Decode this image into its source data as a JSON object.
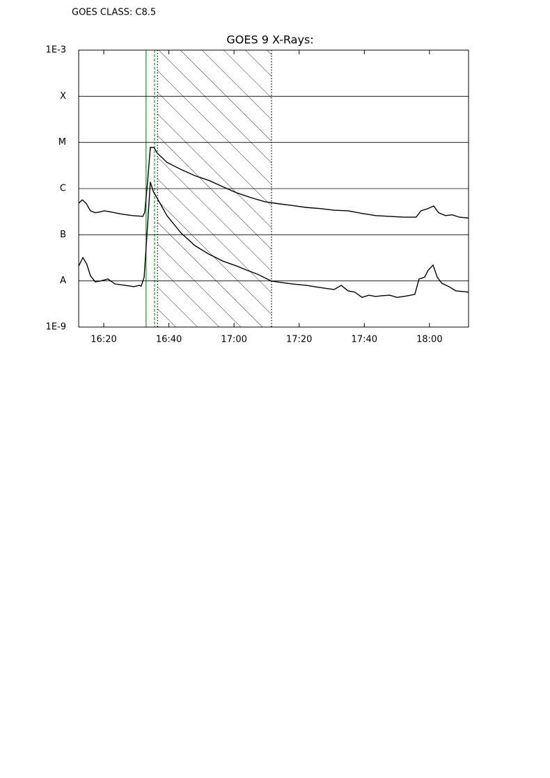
{
  "header": "GOES CLASS: C8.5",
  "chart_data": {
    "type": "line",
    "title": "GOES 9 X-Rays:",
    "ylog": true,
    "grid": true,
    "xlim": [
      972.3,
      1092.0
    ],
    "xticks": [
      {
        "value": 980,
        "label": "16:20"
      },
      {
        "value": 1000,
        "label": "16:40"
      },
      {
        "value": 1020,
        "label": "17:00"
      },
      {
        "value": 1040,
        "label": "17:20"
      },
      {
        "value": 1060,
        "label": "17:40"
      },
      {
        "value": 1080,
        "label": "18:00"
      }
    ],
    "ylim": [
      1e-09,
      0.001
    ],
    "yticks": [
      {
        "value": 1e-09,
        "label": "1E-9"
      },
      {
        "value": 1e-08,
        "label": "A"
      },
      {
        "value": 1e-07,
        "label": "B"
      },
      {
        "value": 1e-06,
        "label": "C"
      },
      {
        "value": 1e-05,
        "label": "M"
      },
      {
        "value": 0.0001,
        "label": "X"
      },
      {
        "value": 0.001,
        "label": "1E-3"
      }
    ],
    "vlines": [
      {
        "x": 993.0,
        "color": "#00b000",
        "style": "solid"
      },
      {
        "x": 995.6,
        "color": "#00b000",
        "style": "dashed"
      },
      {
        "x": 996.5,
        "color": "#000000",
        "style": "dotted"
      },
      {
        "x": 1031.5,
        "color": "#000000",
        "style": "dotted"
      }
    ],
    "hatch": [
      996.5,
      1031.5
    ],
    "series": [
      {
        "color": "#000000",
        "x": [
          972.3,
          973.4,
          974.6,
          975.9,
          977.4,
          978.7,
          980.2,
          982.3,
          985.5,
          988.8,
          992.0,
          992.6,
          993.5,
          994.3,
          995.4,
          996.4,
          999.4,
          1003.7,
          1008.0,
          1012.3,
          1016.5,
          1020.8,
          1025.1,
          1029.4,
          1033.6,
          1037.9,
          1042.2,
          1046.4,
          1050.7,
          1055.0,
          1059.3,
          1063.5,
          1067.8,
          1072.1,
          1075.9,
          1077.4,
          1079.6,
          1081.3,
          1082.8,
          1084.9,
          1087.0,
          1089.2,
          1092.0
        ],
        "values": [
          4.8e-07,
          5.7e-07,
          4.8e-07,
          3.3e-07,
          3e-07,
          3.1e-07,
          3.3e-07,
          3.1e-07,
          2.8e-07,
          2.6e-07,
          2.5e-07,
          3.1e-07,
          1.5e-06,
          7.8e-06,
          7.8e-06,
          5.9e-06,
          3.7e-06,
          2.6e-06,
          1.9e-06,
          1.5e-06,
          1.1e-06,
          8.1e-07,
          6.4e-07,
          5.2e-07,
          4.7e-07,
          4.3e-07,
          3.9e-07,
          3.7e-07,
          3.4e-07,
          3.3e-07,
          2.9e-07,
          2.6e-07,
          2.5e-07,
          2.4e-07,
          2.4e-07,
          3.3e-07,
          3.7e-07,
          4.2e-07,
          3e-07,
          2.6e-07,
          2.7e-07,
          2.4e-07,
          2.3e-07
        ]
      },
      {
        "color": "#000000",
        "x": [
          972.3,
          973.6,
          974.8,
          975.9,
          977.4,
          979.1,
          981.3,
          983.4,
          986.6,
          989.2,
          990.9,
          991.5,
          992.4,
          993.5,
          994.3,
          995.2,
          996.4,
          999.4,
          1003.7,
          1008.0,
          1012.3,
          1016.5,
          1020.8,
          1024.0,
          1027.2,
          1031.5,
          1034.7,
          1037.9,
          1042.2,
          1046.4,
          1050.7,
          1052.9,
          1055.0,
          1057.1,
          1059.3,
          1061.4,
          1063.5,
          1065.7,
          1067.8,
          1070.0,
          1072.1,
          1075.5,
          1076.8,
          1078.5,
          1079.6,
          1081.1,
          1082.4,
          1083.8,
          1086.0,
          1088.1,
          1092.0
        ],
        "values": [
          2.1e-08,
          3.2e-08,
          2.3e-08,
          1.3e-08,
          9.5e-09,
          1e-08,
          1.1e-08,
          8.6e-09,
          8e-09,
          7.5e-09,
          8e-09,
          7.7e-09,
          1.2e-08,
          1.8e-07,
          1.4e-06,
          8.7e-07,
          6.2e-07,
          2.6e-07,
          1.1e-07,
          5.8e-08,
          3.8e-08,
          2.7e-08,
          2.1e-08,
          1.7e-08,
          1.4e-08,
          9.9e-09,
          9.2e-09,
          8.6e-09,
          8e-09,
          7.2e-09,
          6.5e-09,
          8e-09,
          6.1e-09,
          5.7e-09,
          4.4e-09,
          4.9e-09,
          4.6e-09,
          4.8e-09,
          4.9e-09,
          4.4e-09,
          4.6e-09,
          5.1e-09,
          1.1e-08,
          1.2e-08,
          1.7e-08,
          2.2e-08,
          1.2e-08,
          8.9e-09,
          7.5e-09,
          6.1e-09,
          5.7e-09
        ]
      }
    ]
  }
}
